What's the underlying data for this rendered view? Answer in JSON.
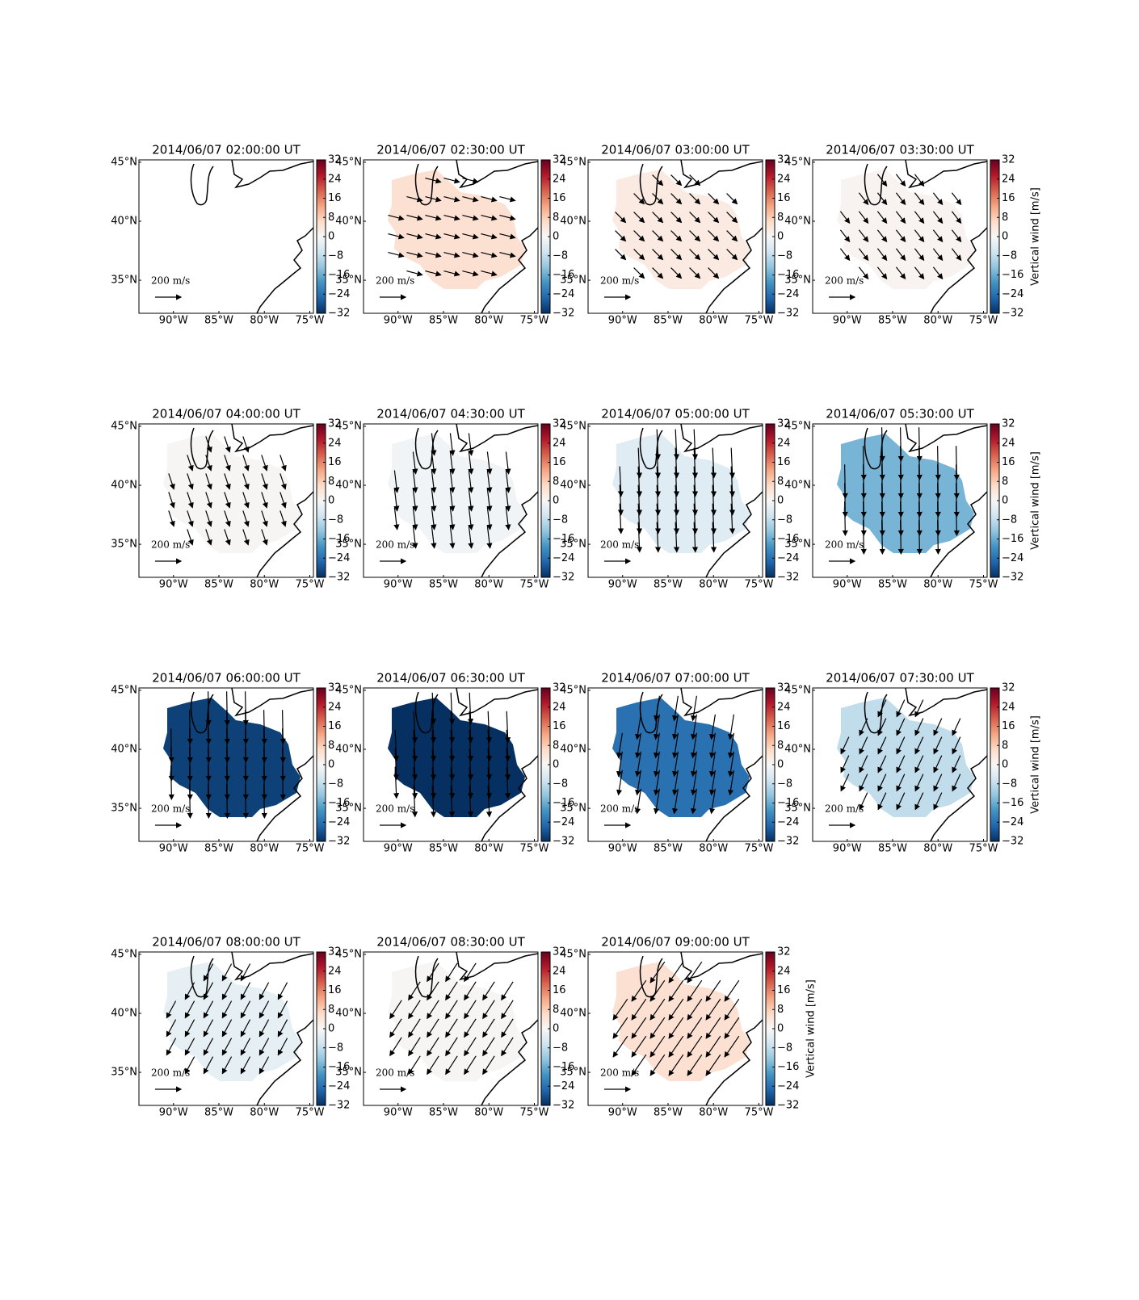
{
  "axes": {
    "xlim": [
      -93.8,
      -74.6
    ],
    "ylim": [
      32.2,
      45.2
    ],
    "xticks": [
      {
        "value": -90,
        "label": "90°W"
      },
      {
        "value": -85,
        "label": "85°W"
      },
      {
        "value": -80,
        "label": "80°W"
      },
      {
        "value": -75,
        "label": "75°W"
      }
    ],
    "yticks": [
      {
        "value": 35,
        "label": "35°N"
      },
      {
        "value": 40,
        "label": "40°N"
      },
      {
        "value": 45,
        "label": "45°N"
      }
    ],
    "colorbar": {
      "label": "Vertical wind [m/s]",
      "lim": [
        -32,
        32
      ],
      "colormap": "RdBu_r",
      "ticks": [
        {
          "value": -32,
          "label": "−32"
        },
        {
          "value": -24,
          "label": "−24"
        },
        {
          "value": -16,
          "label": "−16"
        },
        {
          "value": -8,
          "label": "−8"
        },
        0,
        8,
        16,
        24,
        32
      ]
    },
    "quiver_key": {
      "value": 200,
      "label": "200 m/s"
    }
  },
  "chart_data": [
    {
      "type": "map",
      "title": "2014/06/07 02:00:00 UT",
      "value": null,
      "wind": null
    },
    {
      "type": "map",
      "title": "2014/06/07 02:30:00 UT",
      "value": 5,
      "wind": {
        "u": 120,
        "v": -30
      }
    },
    {
      "type": "map",
      "title": "2014/06/07 03:00:00 UT",
      "value": 3,
      "wind": {
        "u": 80,
        "v": -80
      }
    },
    {
      "type": "map",
      "title": "2014/06/07 03:30:00 UT",
      "value": 1,
      "wind": {
        "u": 70,
        "v": -90
      }
    },
    {
      "type": "map",
      "title": "2014/06/07 04:00:00 UT",
      "value": 0.5,
      "wind": {
        "u": 40,
        "v": -120
      }
    },
    {
      "type": "map",
      "title": "2014/06/07 04:30:00 UT",
      "value": -1,
      "wind": {
        "u": 20,
        "v": -170
      }
    },
    {
      "type": "map",
      "title": "2014/06/07 05:00:00 UT",
      "value": -4,
      "wind": {
        "u": 10,
        "v": -230
      }
    },
    {
      "type": "map",
      "title": "2014/06/07 05:30:00 UT",
      "value": -15,
      "wind": {
        "u": 5,
        "v": -260
      }
    },
    {
      "type": "map",
      "title": "2014/06/07 06:00:00 UT",
      "value": -30,
      "wind": {
        "u": 5,
        "v": -260
      }
    },
    {
      "type": "map",
      "title": "2014/06/07 06:30:00 UT",
      "value": -32,
      "wind": {
        "u": 10,
        "v": -240
      }
    },
    {
      "type": "map",
      "title": "2014/06/07 07:00:00 UT",
      "value": -24,
      "wind": {
        "u": -30,
        "v": -190
      }
    },
    {
      "type": "map",
      "title": "2014/06/07 07:30:00 UT",
      "value": -8,
      "wind": {
        "u": -60,
        "v": -130
      }
    },
    {
      "type": "map",
      "title": "2014/06/07 08:00:00 UT",
      "value": -3,
      "wind": {
        "u": -70,
        "v": -130
      }
    },
    {
      "type": "map",
      "title": "2014/06/07 08:30:00 UT",
      "value": 0.5,
      "wind": {
        "u": -90,
        "v": -140
      }
    },
    {
      "type": "map",
      "title": "2014/06/07 09:00:00 UT",
      "value": 5,
      "wind": {
        "u": -110,
        "v": -160
      }
    }
  ]
}
